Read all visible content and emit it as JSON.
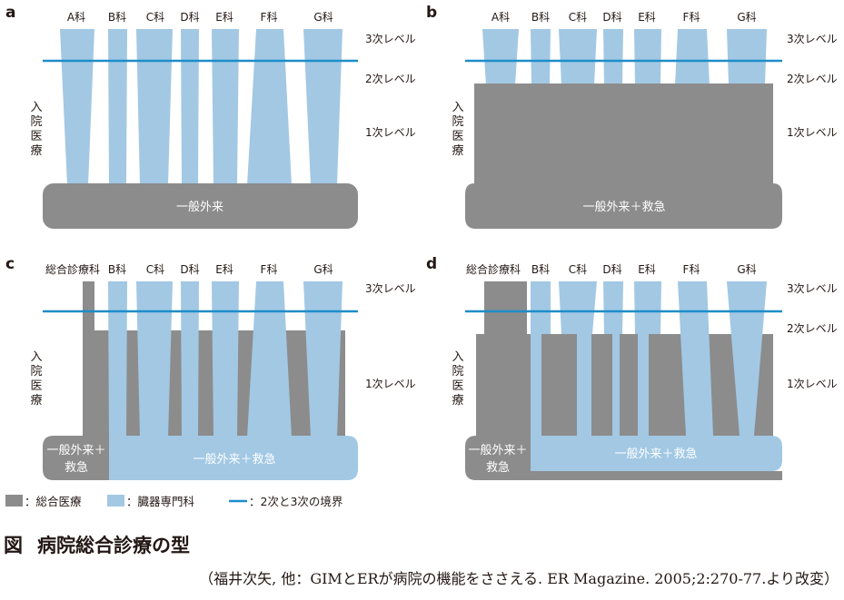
{
  "colors": {
    "gray": "#8c8c8c",
    "blue": "#a2c8e4",
    "line": "#1e8dc8",
    "text": "#231815"
  },
  "panels": {
    "a": {
      "label": "a",
      "columns": [
        "A科",
        "B科",
        "C科",
        "D科",
        "E科",
        "F科",
        "G科"
      ],
      "levels": [
        "3次レベル",
        "2次レベル",
        "1次レベル"
      ],
      "inpatient": [
        "入",
        "院",
        "医",
        "療"
      ],
      "base": [
        "一般外来"
      ]
    },
    "b": {
      "label": "b",
      "columns": [
        "A科",
        "B科",
        "C科",
        "D科",
        "E科",
        "F科",
        "G科"
      ],
      "levels": [
        "3次レベル",
        "2次レベル",
        "1次レベル"
      ],
      "inpatient": [
        "入",
        "院",
        "医",
        "療"
      ],
      "base": [
        "一般外来＋救急"
      ]
    },
    "c": {
      "label": "c",
      "columns": [
        "総合診療科",
        "B科",
        "C科",
        "D科",
        "E科",
        "F科",
        "G科"
      ],
      "levels": [
        "3次レベル",
        "1次レベル"
      ],
      "inpatient": [
        "入",
        "院",
        "医",
        "療"
      ],
      "base_left": [
        "一般外来＋",
        "救急"
      ],
      "base": [
        "一般外来＋救急"
      ]
    },
    "d": {
      "label": "d",
      "columns": [
        "総合診療科",
        "B科",
        "C科",
        "D科",
        "E科",
        "F科",
        "G科"
      ],
      "levels": [
        "3次レベル",
        "2次レベル",
        "1次レベル"
      ],
      "inpatient": [
        "入",
        "院",
        "医",
        "療"
      ],
      "base_left": [
        "一般外来＋",
        "救急"
      ],
      "base": [
        "一般外来＋救急"
      ]
    }
  },
  "legend": [
    {
      "label": "：総合医療",
      "swatch": "gray"
    },
    {
      "label": "：臓器専門科",
      "swatch": "blue"
    },
    {
      "label": "：2次と3次の境界",
      "swatch": "line"
    }
  ],
  "caption": {
    "fig_label": "図",
    "title": "病院総合診療の型",
    "source": "（福井次矢, 他：GIMとERが病院の機能をささえる. ER Magazine. 2005;2:270-77.より改変）"
  }
}
